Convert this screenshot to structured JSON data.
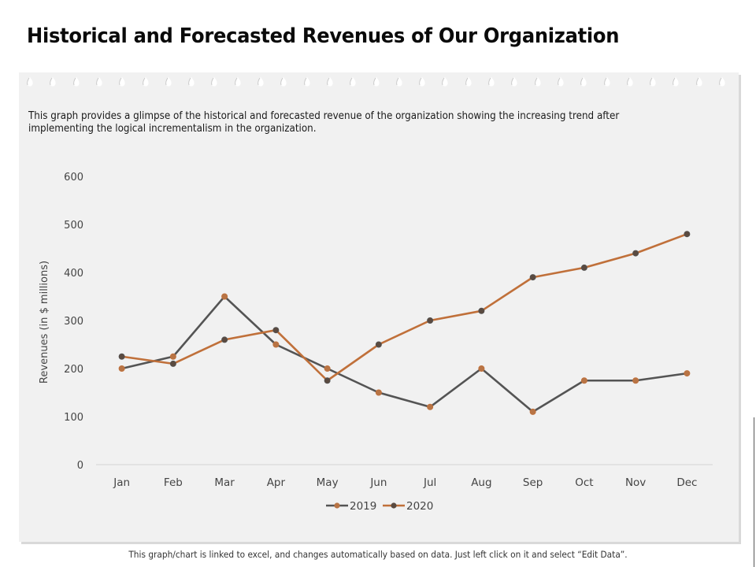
{
  "page": {
    "title": "Historical and Forecasted Revenues of Our Organization",
    "description": "This graph provides a glimpse of the historical and forecasted revenue of the organization showing the increasing trend after implementing the logical incrementalism in the organization.",
    "footer_note": "This graph/chart is linked to excel, and changes automatically based on data. Just left click on it and select “Edit Data”."
  },
  "colors": {
    "series_2019": "#545454",
    "series_2020": "#c0703a",
    "marker_2019": "#b87445",
    "marker_2020": "#5a4a40",
    "axis_text": "#444444",
    "gridline": "#d9d9d9"
  },
  "chart_data": {
    "type": "line",
    "title": "",
    "xlabel": "",
    "ylabel": "Revenues (in $ millions)",
    "categories": [
      "Jan",
      "Feb",
      "Mar",
      "Apr",
      "May",
      "Jun",
      "Jul",
      "Aug",
      "Sep",
      "Oct",
      "Nov",
      "Dec"
    ],
    "series": [
      {
        "name": "2019",
        "values": [
          200,
          225,
          350,
          250,
          200,
          150,
          120,
          200,
          110,
          175,
          175,
          190
        ]
      },
      {
        "name": "2020",
        "values": [
          225,
          210,
          260,
          280,
          175,
          250,
          300,
          320,
          390,
          410,
          440,
          480
        ]
      }
    ],
    "ylim": [
      0,
      600
    ],
    "yticks": [
      0,
      100,
      200,
      300,
      400,
      500,
      600
    ],
    "grid": false,
    "legend": "bottom-center"
  }
}
